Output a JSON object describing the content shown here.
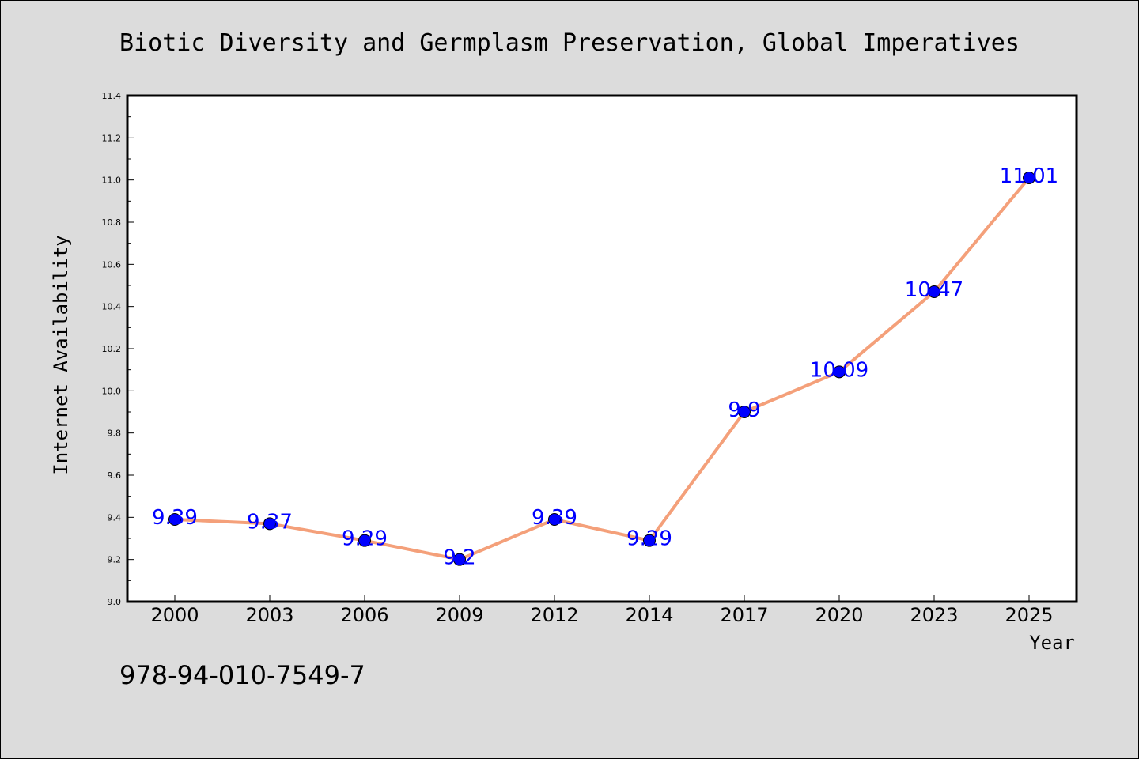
{
  "chart_data": {
    "type": "line",
    "title": "Biotic Diversity and Germplasm Preservation, Global Imperatives",
    "xlabel": "Year",
    "ylabel": "Internet Availability",
    "categories": [
      "2000",
      "2003",
      "2006",
      "2009",
      "2012",
      "2014",
      "2017",
      "2020",
      "2023",
      "2025"
    ],
    "series": [
      {
        "values": [
          9.39,
          9.37,
          9.29,
          9.2,
          9.39,
          9.29,
          9.9,
          10.09,
          10.47,
          11.01
        ],
        "data_labels": [
          "9.39",
          "9.37",
          "9.29",
          "9.2",
          "9.39",
          "9.29",
          "9.9",
          "10.09",
          "10.47",
          "11.01"
        ]
      }
    ],
    "ylim": [
      9.0,
      11.4
    ],
    "yticks": [
      "9.0",
      "9.2",
      "9.4",
      "9.6",
      "9.8",
      "10.0",
      "10.2",
      "10.4",
      "10.6",
      "10.8",
      "11.0",
      "11.2",
      "11.4"
    ],
    "grid": false,
    "legend": "none",
    "colors": {
      "line": "#f4a07a",
      "marker": "#0000ff",
      "data_label": "#0000ff",
      "background": "#dcdcdc",
      "plot_background": "#ffffff"
    }
  },
  "footer": {
    "isbn": "978-94-010-7549-7"
  }
}
